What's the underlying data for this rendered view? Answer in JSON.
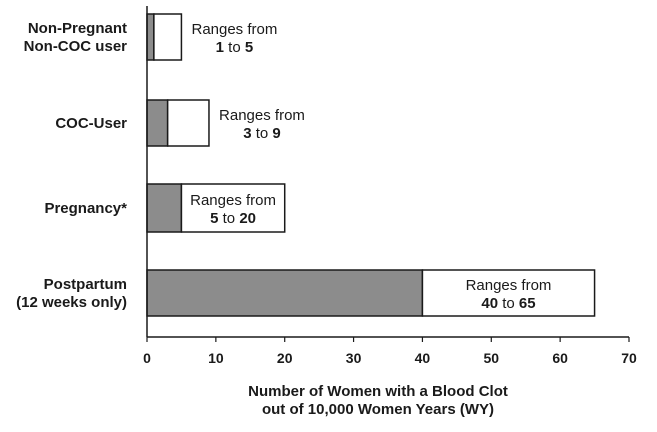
{
  "chart_data": {
    "type": "bar",
    "orientation": "horizontal",
    "stacked": true,
    "categories": [
      [
        "Non-Pregnant",
        "Non-COC user"
      ],
      [
        "COC-User"
      ],
      [
        "Pregnancy*"
      ],
      [
        "Postpartum",
        "(12 weeks only)"
      ]
    ],
    "series": [
      {
        "values": [
          1,
          3,
          5,
          40
        ]
      },
      {
        "values": [
          4,
          6,
          15,
          25
        ]
      }
    ],
    "ranges": [
      {
        "prefix": "Ranges from",
        "low": 1,
        "to": "to",
        "high": 5
      },
      {
        "prefix": "Ranges from",
        "low": 3,
        "to": "to",
        "high": 9
      },
      {
        "prefix": "Ranges from",
        "low": 5,
        "to": "to",
        "high": 20
      },
      {
        "prefix": "Ranges from",
        "low": 40,
        "to": "to",
        "high": 65
      }
    ],
    "xlabel": [
      "Number of Women with a Blood Clot",
      "out of 10,000 Women Years (WY)"
    ],
    "ylabel": "",
    "xlim": [
      0,
      70
    ],
    "xticks": [
      0,
      10,
      20,
      30,
      40,
      50,
      60,
      70
    ],
    "grid": false,
    "colors": {
      "low": "#8c8c8c",
      "high": "#ffffff",
      "stroke": "#1a1a1a"
    }
  }
}
